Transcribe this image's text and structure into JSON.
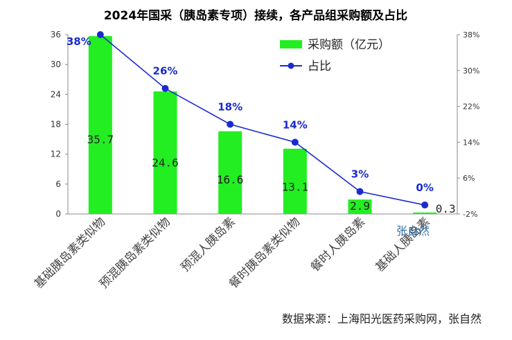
{
  "chart_data": {
    "type": "bar",
    "title": "2024年国采（胰岛素专项）接续，各产品组采购额及占比",
    "categories": [
      "基础胰岛素类似物",
      "预混胰岛素类似物",
      "预混人胰岛素",
      "餐时胰岛素类似物",
      "餐时人胰岛素",
      "基础人胰岛素"
    ],
    "series": [
      {
        "name": "采购额（亿元）",
        "axis": "left",
        "kind": "bar",
        "color": "#22ee22",
        "values": [
          35.7,
          24.6,
          16.6,
          13.1,
          2.9,
          0.3
        ],
        "labels": [
          "35.7",
          "24.6",
          "16.6",
          "13.1",
          "2.9",
          "0.3"
        ]
      },
      {
        "name": "占比",
        "axis": "right",
        "kind": "line",
        "color": "#1a2ad0",
        "values": [
          38,
          26,
          18,
          14,
          3,
          0
        ],
        "labels": [
          "38%",
          "26%",
          "18%",
          "14%",
          "3%",
          "0%"
        ]
      }
    ],
    "y_left": {
      "min": 0,
      "max": 36,
      "ticks": [
        "0",
        "6",
        "12",
        "18",
        "24",
        "30",
        "36"
      ]
    },
    "y_right": {
      "min": -2,
      "max": 38,
      "ticks": [
        "-2%",
        "6%",
        "14%",
        "22%",
        "30%",
        "38%"
      ]
    },
    "legend_position": "top-right",
    "grid": false
  },
  "source_text": "数据来源：上海阳光医药采购网，张自然",
  "watermark": "张自然"
}
